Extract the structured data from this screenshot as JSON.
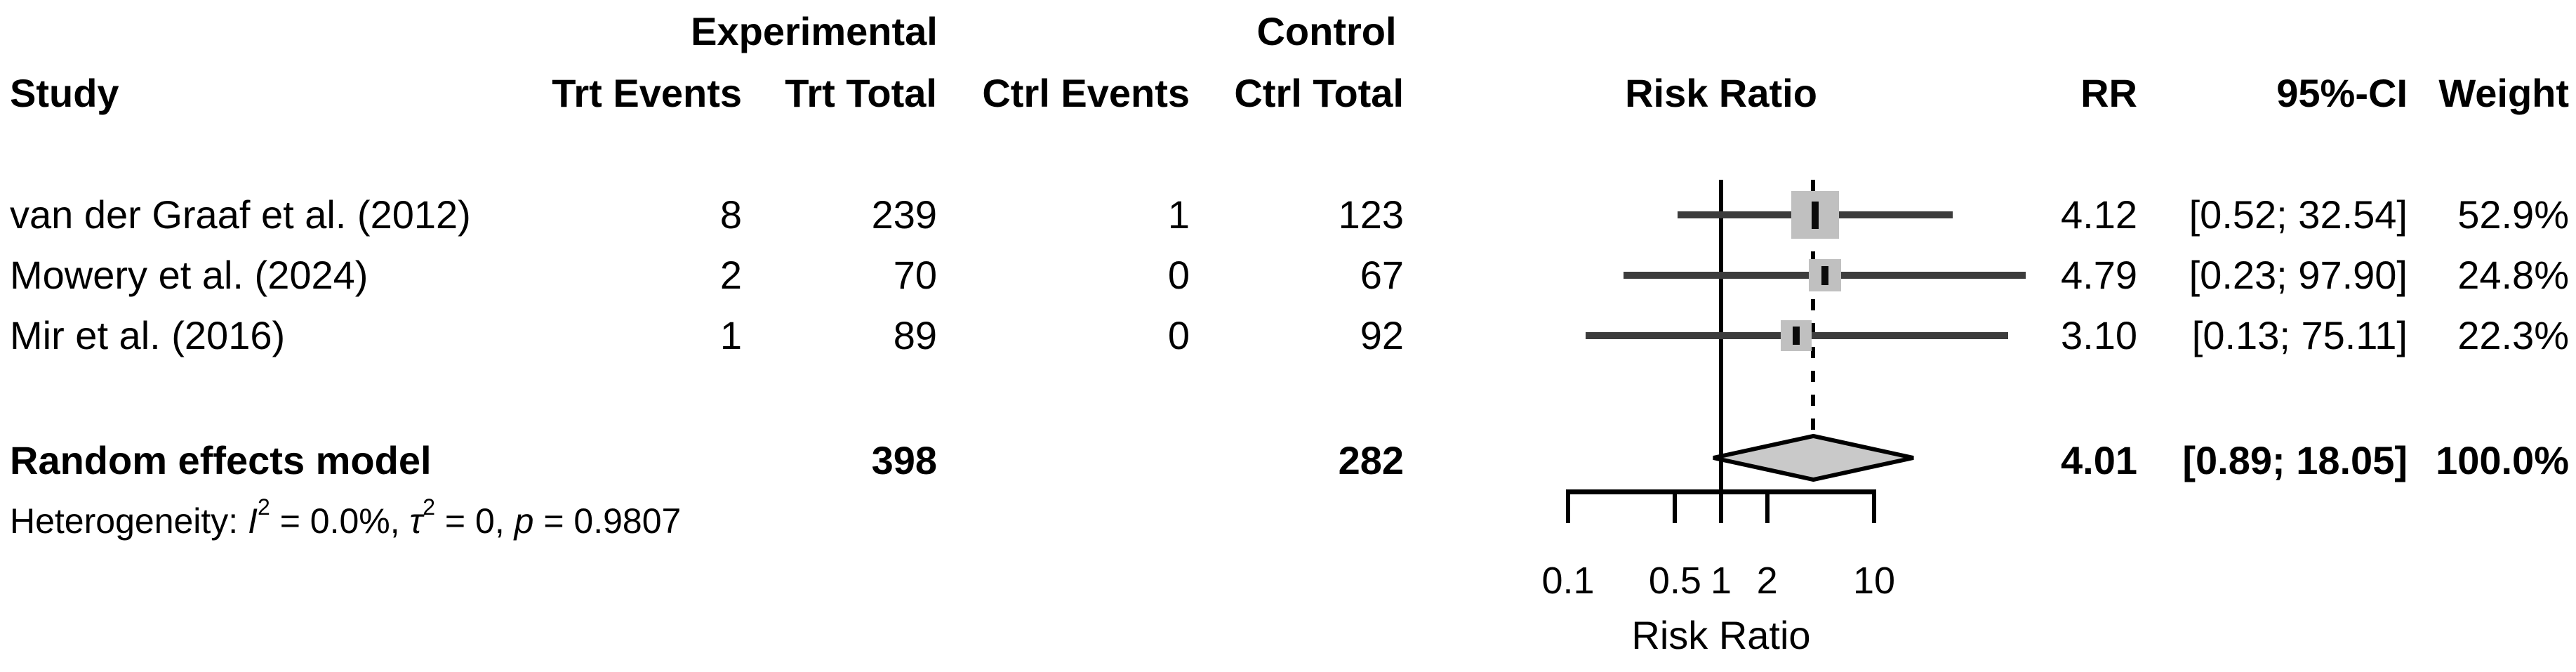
{
  "table": {
    "group_headers": {
      "experimental": "Experimental",
      "control": "Control"
    },
    "col_headers": {
      "study": "Study",
      "trt_events": "Trt Events",
      "trt_total": "Trt Total",
      "ctrl_events": "Ctrl Events",
      "ctrl_total": "Ctrl Total",
      "risk_ratio": "Risk Ratio",
      "rr": "RR",
      "ci": "95%-CI",
      "weight": "Weight"
    },
    "studies": [
      {
        "name": "van der Graaf et al. (2012)",
        "trt_events": "8",
        "trt_total": "239",
        "ctrl_events": "1",
        "ctrl_total": "123",
        "rr": "4.12",
        "ci": "[0.52; 32.54]",
        "weight": "52.9%"
      },
      {
        "name": "Mowery et al. (2024)",
        "trt_events": "2",
        "trt_total": "70",
        "ctrl_events": "0",
        "ctrl_total": "67",
        "rr": "4.79",
        "ci": "[0.23; 97.90]",
        "weight": "24.8%"
      },
      {
        "name": "Mir et al. (2016)",
        "trt_events": "1",
        "trt_total": "89",
        "ctrl_events": "0",
        "ctrl_total": "92",
        "rr": "3.10",
        "ci": "[0.13; 75.11]",
        "weight": "22.3%"
      }
    ],
    "summary": {
      "name": "Random effects model",
      "trt_total": "398",
      "ctrl_total": "282",
      "rr": "4.01",
      "ci": "[0.89; 18.05]",
      "weight": "100.0%"
    }
  },
  "heterogeneity": {
    "prefix": "Heterogeneity: ",
    "i_sym": "I",
    "i_sup": "2",
    "i_rest": " = 0.0%, ",
    "tau_sym": "τ",
    "tau_sup": "2",
    "tau_rest": " = 0, ",
    "p_sym": "p",
    "p_rest": " = 0.9807"
  },
  "chart_data": {
    "type": "forest",
    "x_scale": "log",
    "xlim": [
      0.1,
      10
    ],
    "axis_ticks": [
      0.1,
      0.5,
      1,
      2,
      10
    ],
    "axis_tick_labels": [
      "0.1",
      "0.5",
      "1",
      "2",
      "10"
    ],
    "xlabel": "Risk Ratio",
    "null_value": 1,
    "studies": [
      {
        "name": "van der Graaf et al. (2012)",
        "rr": 4.12,
        "ci_lower": 0.52,
        "ci_upper": 32.54,
        "weight_pct": 52.9
      },
      {
        "name": "Mowery et al. (2024)",
        "rr": 4.79,
        "ci_lower": 0.23,
        "ci_upper": 97.9,
        "weight_pct": 24.8
      },
      {
        "name": "Mir et al. (2016)",
        "rr": 3.1,
        "ci_lower": 0.13,
        "ci_upper": 75.11,
        "weight_pct": 22.3
      }
    ],
    "pooled": {
      "model": "Random effects model",
      "rr": 4.01,
      "ci_lower": 0.89,
      "ci_upper": 18.05,
      "weight_pct": 100.0
    },
    "heterogeneity": {
      "i2": "0.0%",
      "tau2": "0",
      "p": "0.9807"
    }
  },
  "colors": {
    "text": "#000000",
    "ci_line": "#3c3c3c",
    "square": "#c0c0c0",
    "square_marker": "#0a0a0a",
    "diamond_fill": "#c9c9c9",
    "diamond_border": "#000000",
    "axis": "#000000"
  }
}
